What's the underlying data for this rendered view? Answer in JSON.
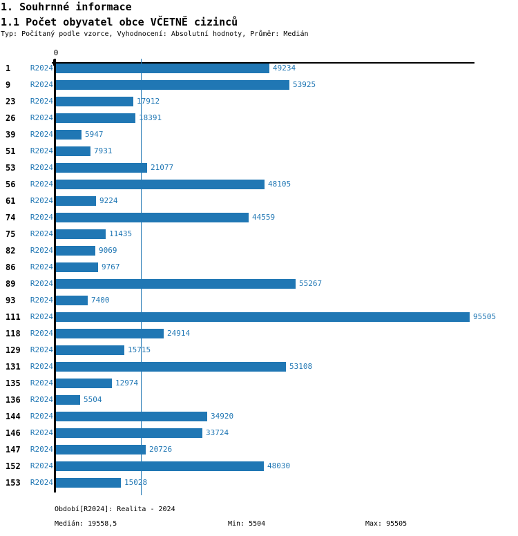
{
  "header": {
    "section_title": "1. Souhrnné informace",
    "chart_title": "1.1 Počet obyvatel obce VČETNĚ cizinců",
    "meta": "Typ: Počítaný podle vzorce, Vyhodnocení: Absolutní hodnoty, Průměr: Medián"
  },
  "chart_data": {
    "type": "bar",
    "orientation": "horizontal",
    "title": "1.1 Počet obyvatel obce VČETNĚ cizinců",
    "categories": [
      "1",
      "9",
      "23",
      "26",
      "39",
      "51",
      "53",
      "56",
      "61",
      "74",
      "75",
      "82",
      "86",
      "89",
      "93",
      "111",
      "118",
      "129",
      "131",
      "135",
      "136",
      "144",
      "146",
      "147",
      "152",
      "153"
    ],
    "series": [
      {
        "name": "R2024",
        "values": [
          49234,
          53925,
          17912,
          18391,
          5947,
          7931,
          21077,
          48105,
          9224,
          44559,
          11435,
          9069,
          9767,
          55267,
          7400,
          95505,
          24914,
          15715,
          53108,
          12974,
          5504,
          34920,
          33724,
          20726,
          48030,
          15028
        ]
      }
    ],
    "axis_zero_label": "0",
    "xlim": [
      0,
      96700
    ],
    "median_line_value": 19558.5,
    "min": 5504,
    "max": 95505,
    "grid": false,
    "value_labels": "right-of-bar",
    "bar_color": "#2077b4",
    "label_color": "#2077b4"
  },
  "footer": {
    "period": "Období[R2024]: Realita - 2024",
    "median": "Medián: 19558,5",
    "min": "Min: 5504",
    "max": "Max: 95505"
  }
}
